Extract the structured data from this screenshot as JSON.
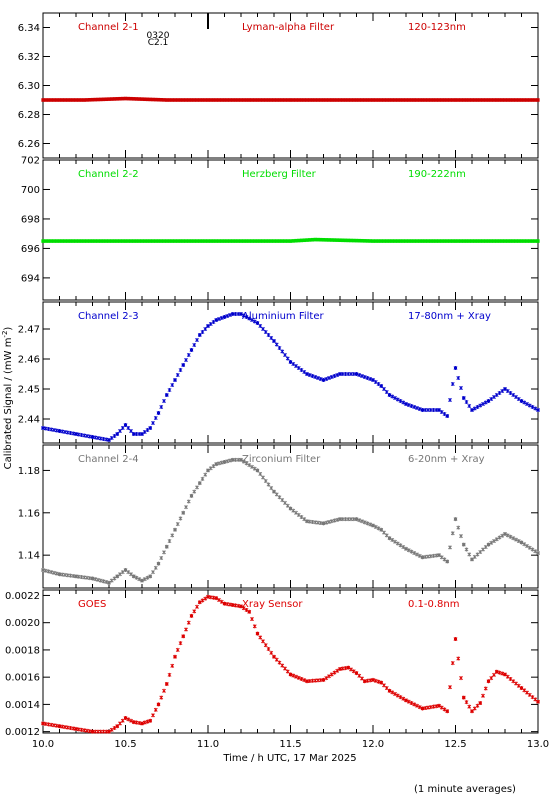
{
  "figure": {
    "xlabel": "Time / h UTC, 17 Mar 2025",
    "ylabel": "Calibrated Signal / (mW m",
    "ylabel_sup": "-2",
    "ylabel_close": ")",
    "footnote": "(1 minute averages)",
    "xlim": [
      10.0,
      13.0
    ],
    "xticks": [
      "10.0",
      "10.5",
      "11.0",
      "11.5",
      "12.0",
      "12.5",
      "13.0"
    ],
    "event_marker": {
      "x": 11.0,
      "labels": [
        "0320",
        "C2.1"
      ],
      "color": "#000000"
    }
  },
  "chart_data": [
    {
      "type": "scatter",
      "name": "Channel 2-1",
      "filter": "Lyman-alpha Filter",
      "band": "120-123nm",
      "color": "#cc0000",
      "ylim": [
        6.25,
        6.35
      ],
      "yticks": [
        "6.26",
        "6.28",
        "6.30",
        "6.32",
        "6.34"
      ],
      "points": [
        [
          10.0,
          6.29
        ],
        [
          10.25,
          6.29
        ],
        [
          10.5,
          6.291
        ],
        [
          10.75,
          6.29
        ],
        [
          11.0,
          6.29
        ],
        [
          11.25,
          6.29
        ],
        [
          11.5,
          6.29
        ],
        [
          11.75,
          6.29
        ],
        [
          12.0,
          6.29
        ],
        [
          12.25,
          6.29
        ],
        [
          12.5,
          6.29
        ],
        [
          12.75,
          6.29
        ],
        [
          13.0,
          6.29
        ]
      ]
    },
    {
      "type": "scatter",
      "name": "Channel 2-2",
      "filter": "Herzberg Filter",
      "band": "190-222nm",
      "color": "#00dd00",
      "ylim": [
        692.5,
        702.0
      ],
      "yticks": [
        "694",
        "696",
        "698",
        "700",
        "702"
      ],
      "points": [
        [
          10.0,
          696.5
        ],
        [
          10.5,
          696.5
        ],
        [
          11.0,
          696.5
        ],
        [
          11.5,
          696.5
        ],
        [
          11.65,
          696.6
        ],
        [
          12.0,
          696.5
        ],
        [
          12.5,
          696.5
        ],
        [
          13.0,
          696.5
        ]
      ]
    },
    {
      "type": "scatter",
      "name": "Channel 2-3",
      "filter": "Aluminium Filter",
      "band": "17-80nm + Xray",
      "color": "#0000cc",
      "ylim": [
        2.432,
        2.479
      ],
      "yticks": [
        "2.44",
        "2.45",
        "2.46",
        "2.47"
      ],
      "points": [
        [
          10.0,
          2.437
        ],
        [
          10.1,
          2.436
        ],
        [
          10.2,
          2.435
        ],
        [
          10.3,
          2.434
        ],
        [
          10.4,
          2.433
        ],
        [
          10.45,
          2.435
        ],
        [
          10.5,
          2.438
        ],
        [
          10.55,
          2.435
        ],
        [
          10.6,
          2.435
        ],
        [
          10.65,
          2.437
        ],
        [
          10.7,
          2.442
        ],
        [
          10.75,
          2.448
        ],
        [
          10.8,
          2.453
        ],
        [
          10.85,
          2.458
        ],
        [
          10.9,
          2.463
        ],
        [
          10.95,
          2.468
        ],
        [
          11.0,
          2.471
        ],
        [
          11.05,
          2.473
        ],
        [
          11.1,
          2.474
        ],
        [
          11.15,
          2.475
        ],
        [
          11.2,
          2.475
        ],
        [
          11.3,
          2.472
        ],
        [
          11.4,
          2.466
        ],
        [
          11.5,
          2.459
        ],
        [
          11.6,
          2.455
        ],
        [
          11.7,
          2.453
        ],
        [
          11.8,
          2.455
        ],
        [
          11.9,
          2.455
        ],
        [
          12.0,
          2.453
        ],
        [
          12.05,
          2.451
        ],
        [
          12.1,
          2.448
        ],
        [
          12.2,
          2.445
        ],
        [
          12.3,
          2.443
        ],
        [
          12.4,
          2.443
        ],
        [
          12.45,
          2.441
        ],
        [
          12.5,
          2.457
        ],
        [
          12.55,
          2.447
        ],
        [
          12.6,
          2.443
        ],
        [
          12.7,
          2.446
        ],
        [
          12.8,
          2.45
        ],
        [
          12.9,
          2.446
        ],
        [
          13.0,
          2.443
        ]
      ]
    },
    {
      "type": "scatter",
      "name": "Channel 2-4",
      "filter": "Zirconium Filter",
      "band": "6-20nm + Xray",
      "color": "#777777",
      "ylim": [
        1.1245,
        1.192
      ],
      "yticks": [
        "1.14",
        "1.16",
        "1.18"
      ],
      "points": [
        [
          10.0,
          1.133
        ],
        [
          10.1,
          1.131
        ],
        [
          10.2,
          1.13
        ],
        [
          10.3,
          1.129
        ],
        [
          10.4,
          1.127
        ],
        [
          10.45,
          1.13
        ],
        [
          10.5,
          1.133
        ],
        [
          10.55,
          1.13
        ],
        [
          10.6,
          1.128
        ],
        [
          10.65,
          1.13
        ],
        [
          10.7,
          1.136
        ],
        [
          10.75,
          1.144
        ],
        [
          10.8,
          1.152
        ],
        [
          10.85,
          1.16
        ],
        [
          10.9,
          1.168
        ],
        [
          10.95,
          1.174
        ],
        [
          11.0,
          1.18
        ],
        [
          11.05,
          1.183
        ],
        [
          11.1,
          1.184
        ],
        [
          11.15,
          1.185
        ],
        [
          11.2,
          1.185
        ],
        [
          11.3,
          1.18
        ],
        [
          11.4,
          1.17
        ],
        [
          11.5,
          1.162
        ],
        [
          11.6,
          1.156
        ],
        [
          11.7,
          1.155
        ],
        [
          11.8,
          1.157
        ],
        [
          11.9,
          1.157
        ],
        [
          12.0,
          1.154
        ],
        [
          12.05,
          1.152
        ],
        [
          12.1,
          1.148
        ],
        [
          12.2,
          1.143
        ],
        [
          12.3,
          1.139
        ],
        [
          12.4,
          1.14
        ],
        [
          12.45,
          1.137
        ],
        [
          12.5,
          1.157
        ],
        [
          12.55,
          1.145
        ],
        [
          12.6,
          1.138
        ],
        [
          12.7,
          1.145
        ],
        [
          12.8,
          1.15
        ],
        [
          12.9,
          1.146
        ],
        [
          13.0,
          1.141
        ]
      ]
    },
    {
      "type": "scatter",
      "name": "GOES",
      "filter": "Xray Sensor",
      "band": "0.1-0.8nm",
      "color": "#dd0000",
      "ylim": [
        0.00119,
        0.00224
      ],
      "yticks": [
        "0.0012",
        "0.0014",
        "0.0016",
        "0.0018",
        "0.0020",
        "0.0022"
      ],
      "points": [
        [
          10.0,
          0.00126
        ],
        [
          10.1,
          0.00124
        ],
        [
          10.2,
          0.00122
        ],
        [
          10.3,
          0.0012
        ],
        [
          10.4,
          0.0012
        ],
        [
          10.45,
          0.00124
        ],
        [
          10.5,
          0.0013
        ],
        [
          10.55,
          0.00127
        ],
        [
          10.6,
          0.00126
        ],
        [
          10.65,
          0.00128
        ],
        [
          10.7,
          0.0014
        ],
        [
          10.75,
          0.00155
        ],
        [
          10.8,
          0.00175
        ],
        [
          10.85,
          0.0019
        ],
        [
          10.9,
          0.00205
        ],
        [
          10.95,
          0.00215
        ],
        [
          11.0,
          0.00219
        ],
        [
          11.05,
          0.00218
        ],
        [
          11.1,
          0.00214
        ],
        [
          11.15,
          0.00213
        ],
        [
          11.2,
          0.00212
        ],
        [
          11.25,
          0.00208
        ],
        [
          11.3,
          0.00192
        ],
        [
          11.4,
          0.00175
        ],
        [
          11.5,
          0.00162
        ],
        [
          11.6,
          0.00157
        ],
        [
          11.7,
          0.00158
        ],
        [
          11.8,
          0.00166
        ],
        [
          11.85,
          0.00167
        ],
        [
          11.9,
          0.00163
        ],
        [
          11.95,
          0.00157
        ],
        [
          12.0,
          0.00158
        ],
        [
          12.05,
          0.00156
        ],
        [
          12.1,
          0.0015
        ],
        [
          12.2,
          0.00143
        ],
        [
          12.3,
          0.00137
        ],
        [
          12.4,
          0.00139
        ],
        [
          12.45,
          0.00135
        ],
        [
          12.5,
          0.00188
        ],
        [
          12.55,
          0.00145
        ],
        [
          12.6,
          0.00135
        ],
        [
          12.65,
          0.00141
        ],
        [
          12.7,
          0.00157
        ],
        [
          12.75,
          0.00164
        ],
        [
          12.8,
          0.00162
        ],
        [
          12.9,
          0.00152
        ],
        [
          13.0,
          0.00142
        ]
      ]
    }
  ]
}
